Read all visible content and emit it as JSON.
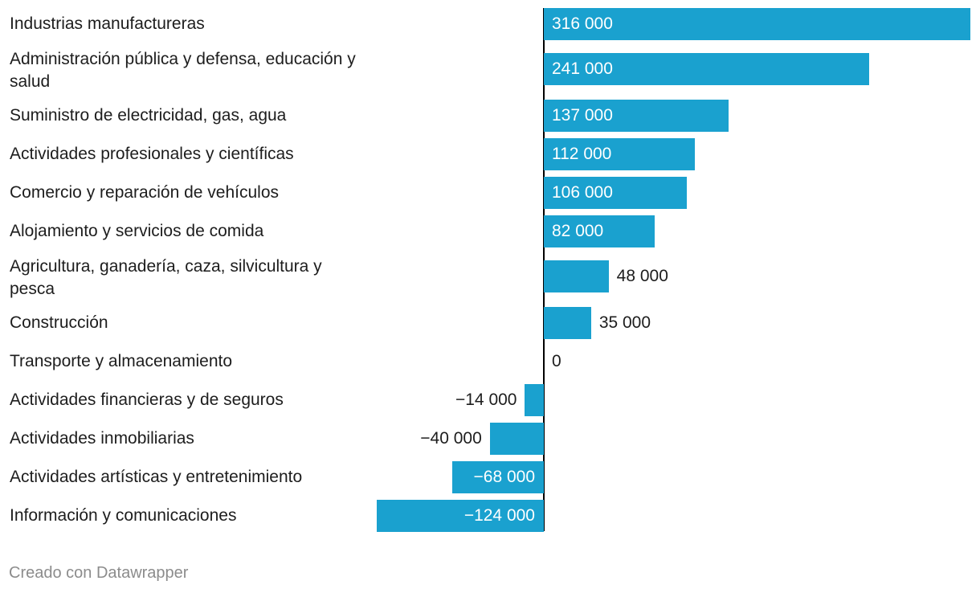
{
  "chart_data": {
    "type": "bar",
    "orientation": "horizontal",
    "categories": [
      "Industrias manufactureras",
      "Administración pública y defensa, educación y salud",
      "Suministro de electricidad, gas, agua",
      "Actividades profesionales y científicas",
      "Comercio y reparación de vehículos",
      "Alojamiento y servicios de comida",
      "Agricultura, ganadería, caza, silvicultura y pesca",
      "Construcción",
      "Transporte y almacenamiento",
      "Actividades financieras y de seguros",
      "Actividades inmobiliarias",
      "Actividades artísticas y entretenimiento",
      "Información y comunicaciones"
    ],
    "values": [
      316000,
      241000,
      137000,
      112000,
      106000,
      82000,
      48000,
      35000,
      0,
      -14000,
      -40000,
      -68000,
      -124000
    ],
    "value_labels": [
      "316 000",
      "241 000",
      "137 000",
      "112 000",
      "106 000",
      "82 000",
      "48 000",
      "35 000",
      "0",
      "−14 000",
      "−40 000",
      "−68 000",
      "−124 000"
    ],
    "bar_color": "#1aa1cf",
    "title": "",
    "xlabel": "",
    "ylabel": "",
    "grid": false,
    "legend": "none"
  },
  "footer": {
    "credit": "Creado con Datawrapper"
  }
}
